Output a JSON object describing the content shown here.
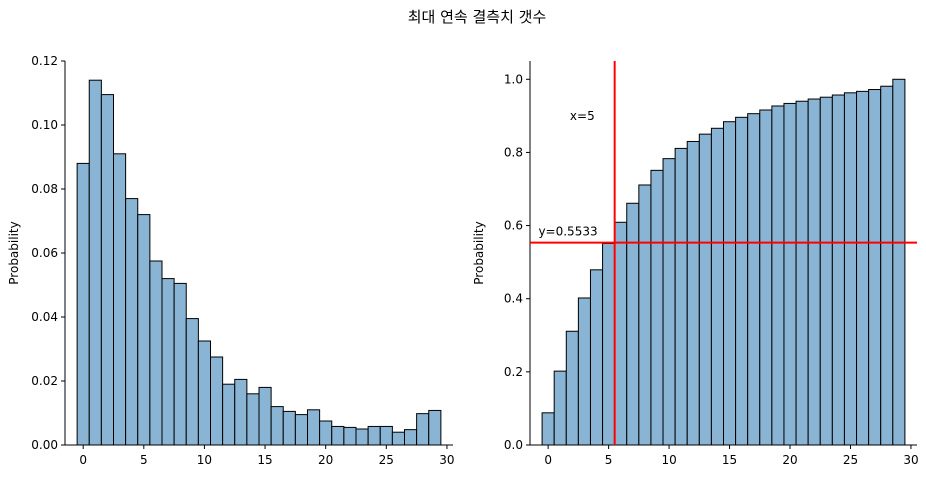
{
  "figure": {
    "suptitle": "최대 연속 결측치 갯수"
  },
  "chart_data": [
    {
      "type": "bar",
      "subtype": "histogram",
      "bar_color": "#89b4d4",
      "edge_color": "#000000",
      "xlabel": "",
      "ylabel": "Probability",
      "xlim": [
        -1.5,
        30.5
      ],
      "ylim": [
        0,
        0.12
      ],
      "xticks": [
        0,
        5,
        10,
        15,
        20,
        25,
        30
      ],
      "xtick_labels": [
        "0",
        "5",
        "10",
        "15",
        "20",
        "25",
        "30"
      ],
      "yticks": [
        0,
        0.02,
        0.04,
        0.06,
        0.08,
        0.1,
        0.12
      ],
      "ytick_labels": [
        "0.00",
        "0.02",
        "0.04",
        "0.06",
        "0.08",
        "0.10",
        "0.12"
      ],
      "grid": false,
      "x": [
        0,
        1,
        2,
        3,
        4,
        5,
        6,
        7,
        8,
        9,
        10,
        11,
        12,
        13,
        14,
        15,
        16,
        17,
        18,
        19,
        20,
        21,
        22,
        23,
        24,
        25,
        26,
        27,
        28,
        29
      ],
      "values": [
        0.088,
        0.114,
        0.1095,
        0.091,
        0.077,
        0.072,
        0.0575,
        0.052,
        0.0505,
        0.0395,
        0.0325,
        0.0275,
        0.019,
        0.0205,
        0.016,
        0.018,
        0.012,
        0.0105,
        0.0095,
        0.011,
        0.0075,
        0.0058,
        0.0055,
        0.005,
        0.0058,
        0.0058,
        0.004,
        0.0048,
        0.0098,
        0.0108
      ]
    },
    {
      "type": "bar",
      "subtype": "cumulative histogram",
      "bar_color": "#89b4d4",
      "edge_color": "#000000",
      "xlabel": "",
      "ylabel": "Probability",
      "xlim": [
        -1.5,
        30.5
      ],
      "ylim": [
        0,
        1.05
      ],
      "xticks": [
        0,
        5,
        10,
        15,
        20,
        25,
        30
      ],
      "xtick_labels": [
        "0",
        "5",
        "10",
        "15",
        "20",
        "25",
        "30"
      ],
      "yticks": [
        0,
        0.2,
        0.4,
        0.6,
        0.8,
        1.0
      ],
      "ytick_labels": [
        "0.0",
        "0.2",
        "0.4",
        "0.6",
        "0.8",
        "1.0"
      ],
      "grid": false,
      "x": [
        0,
        1,
        2,
        3,
        4,
        5,
        6,
        7,
        8,
        9,
        10,
        11,
        12,
        13,
        14,
        15,
        16,
        17,
        18,
        19,
        20,
        21,
        22,
        23,
        24,
        25,
        26,
        27,
        28,
        29
      ],
      "values": [
        0.088,
        0.202,
        0.311,
        0.402,
        0.479,
        0.551,
        0.609,
        0.661,
        0.711,
        0.751,
        0.783,
        0.811,
        0.83,
        0.85,
        0.866,
        0.884,
        0.896,
        0.906,
        0.916,
        0.927,
        0.934,
        0.94,
        0.946,
        0.951,
        0.957,
        0.963,
        0.967,
        0.972,
        0.981,
        1.0
      ],
      "reference_lines": {
        "color": "#ff0000",
        "vline_x": 5,
        "hline_y": 0.5533,
        "vline_label": "x=5",
        "hline_label": "y=0.5533"
      }
    }
  ]
}
